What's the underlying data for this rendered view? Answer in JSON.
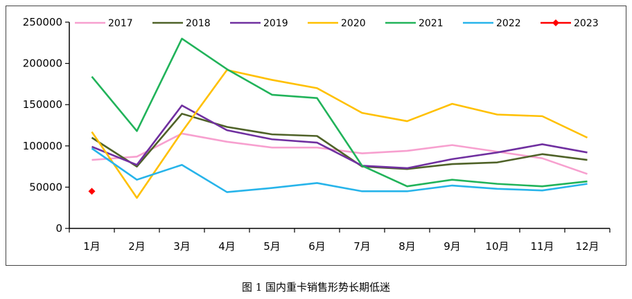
{
  "caption": "图 1  国内重卡销售形势长期低迷",
  "chart_data": {
    "type": "line",
    "title": "",
    "xlabel": "",
    "ylabel": "",
    "categories": [
      "1月",
      "2月",
      "3月",
      "4月",
      "5月",
      "6月",
      "7月",
      "8月",
      "9月",
      "10月",
      "11月",
      "12月"
    ],
    "ylim": [
      0,
      250000
    ],
    "yticks": [
      0,
      50000,
      100000,
      150000,
      200000,
      250000
    ],
    "ytick_labels": [
      "0",
      "50000",
      "100000",
      "150000",
      "200000",
      "250000"
    ],
    "grid": false,
    "legend_position": "top",
    "series": [
      {
        "name": "2017",
        "color": "#f7a0cf",
        "marker": "none",
        "values": [
          83000,
          87000,
          115000,
          105000,
          98000,
          98000,
          91000,
          94000,
          101000,
          93000,
          85000,
          66000
        ]
      },
      {
        "name": "2018",
        "color": "#4f6228",
        "marker": "none",
        "values": [
          110000,
          75000,
          139000,
          123000,
          114000,
          112000,
          75000,
          72000,
          78000,
          80000,
          90000,
          83000
        ]
      },
      {
        "name": "2019",
        "color": "#7030a0",
        "marker": "none",
        "values": [
          99000,
          77000,
          149000,
          119000,
          108000,
          104000,
          76000,
          73000,
          84000,
          92000,
          102000,
          92000
        ]
      },
      {
        "name": "2020",
        "color": "#ffc000",
        "marker": "none",
        "values": [
          117000,
          37000,
          117000,
          192000,
          180000,
          170000,
          140000,
          130000,
          151000,
          138000,
          136000,
          110000
        ]
      },
      {
        "name": "2021",
        "color": "#21b35a",
        "marker": "none",
        "values": [
          184000,
          118000,
          230000,
          193000,
          162000,
          158000,
          76000,
          51000,
          59000,
          54000,
          51000,
          57000
        ]
      },
      {
        "name": "2022",
        "color": "#27b4ea",
        "marker": "none",
        "values": [
          97000,
          59000,
          77000,
          44000,
          49000,
          55000,
          45000,
          45000,
          52000,
          48000,
          46000,
          54000
        ]
      },
      {
        "name": "2023",
        "color": "#ff0000",
        "marker": "diamond",
        "values": [
          45000,
          null,
          null,
          null,
          null,
          null,
          null,
          null,
          null,
          null,
          null,
          null
        ]
      }
    ]
  }
}
